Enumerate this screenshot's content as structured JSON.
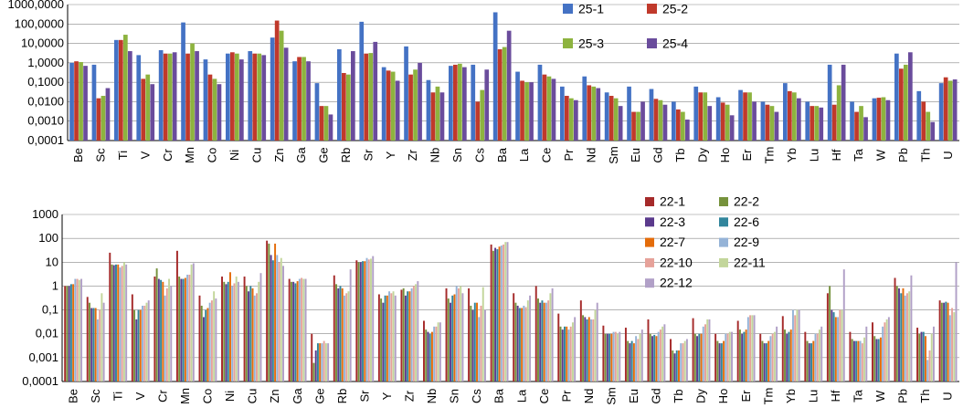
{
  "chart_data": [
    {
      "type": "bar",
      "scale": "log",
      "ylim": [
        0.0001,
        1000
      ],
      "yticks": [
        "0,0001",
        "0,0010",
        "0,0100",
        "0,1000",
        "1,0000",
        "10,0000",
        "100,0000",
        "1000,0000"
      ],
      "grid": true,
      "legend_position": "top-right",
      "categories": [
        "Be",
        "Sc",
        "Ti",
        "V",
        "Cr",
        "Mn",
        "Co",
        "Ni",
        "Cu",
        "Zn",
        "Ga",
        "Ge",
        "Rb",
        "Sr",
        "Y",
        "Zr",
        "Nb",
        "Sn",
        "Cs",
        "Ba",
        "La",
        "Ce",
        "Pr",
        "Nd",
        "Sm",
        "Eu",
        "Gd",
        "Tb",
        "Dy",
        "Ho",
        "Er",
        "Tm",
        "Yb",
        "Lu",
        "Hf",
        "Ta",
        "W",
        "Pb",
        "Th",
        "U"
      ],
      "series": [
        {
          "name": "25-1",
          "color": "#4472c4",
          "values": [
            1,
            0.8,
            15,
            2.5,
            4.5,
            120,
            1.5,
            3,
            4,
            20,
            1.2,
            0.09,
            5,
            130,
            0.6,
            7,
            0.13,
            0.7,
            0.8,
            400,
            0.35,
            0.8,
            0.06,
            0.2,
            0.03,
            0.06,
            0.045,
            0.01,
            0.06,
            0.017,
            0.04,
            0.01,
            0.09,
            0.01,
            0.8,
            0.01,
            0.015,
            3,
            0.035,
            0.09
          ]
        },
        {
          "name": "25-2",
          "color": "#c0392b",
          "values": [
            1.2,
            0.015,
            15,
            0.15,
            3,
            3,
            0.25,
            3.5,
            3,
            150,
            2,
            0.006,
            0.3,
            3,
            0.4,
            0.25,
            0.03,
            0.8,
            0.01,
            5,
            0.12,
            0.25,
            0.02,
            0.07,
            0.02,
            0.003,
            0.014,
            0.004,
            0.03,
            0.009,
            0.03,
            0.007,
            0.035,
            0.006,
            0.007,
            0.003,
            0.016,
            0.5,
            0.01,
            0.18
          ]
        },
        {
          "name": "25-3",
          "color": "#8db33f",
          "values": [
            1.1,
            0.02,
            28,
            0.25,
            3,
            10,
            0.15,
            3,
            3,
            45,
            2,
            0.006,
            0.25,
            3.2,
            0.35,
            0.45,
            0.06,
            0.9,
            0.04,
            6.5,
            0.1,
            0.2,
            0.015,
            0.06,
            0.015,
            0.003,
            0.012,
            0.003,
            0.03,
            0.007,
            0.03,
            0.006,
            0.03,
            0.006,
            0.07,
            0.006,
            0.017,
            0.8,
            0.003,
            0.12
          ]
        },
        {
          "name": "25-4",
          "color": "#6a4c9c",
          "values": [
            0.7,
            0.05,
            4,
            0.08,
            3.5,
            4,
            0.08,
            1.5,
            2.5,
            6,
            1.2,
            0.0022,
            4,
            12,
            0.12,
            1,
            0.03,
            0.6,
            0.45,
            45,
            0.1,
            0.15,
            0.012,
            0.05,
            0.006,
            0.01,
            0.007,
            0.0012,
            0.006,
            0.002,
            0.01,
            0.003,
            0.015,
            0.005,
            0.8,
            0.0016,
            0.012,
            3.5,
            0.0009,
            0.14
          ]
        }
      ]
    },
    {
      "type": "bar",
      "scale": "log",
      "ylim": [
        0.0001,
        1000
      ],
      "yticks": [
        "0,0001",
        "0,001",
        "0,01",
        "0,1",
        "1",
        "10",
        "100",
        "1000"
      ],
      "grid": true,
      "legend_position": "top-right",
      "categories": [
        "Be",
        "Sc",
        "Ti",
        "V",
        "Cr",
        "Mn",
        "Co",
        "Ni",
        "Cu",
        "Zn",
        "Ga",
        "Ge",
        "Rb",
        "Sr",
        "Y",
        "Zr",
        "Nb",
        "Sn",
        "Cs",
        "Ba",
        "La",
        "Ce",
        "Pr",
        "Nd",
        "Sm",
        "Eu",
        "Gd",
        "Tb",
        "Dy",
        "Ho",
        "Er",
        "Tm",
        "Yb",
        "Lu",
        "Hf",
        "Ta",
        "W",
        "Pb",
        "Th",
        "U"
      ],
      "series": [
        {
          "name": "22-1",
          "color": "#a52a2a",
          "values": [
            1,
            0.35,
            25,
            0.45,
            2.5,
            30,
            0.4,
            2.5,
            2.5,
            80,
            2,
            0.01,
            2.8,
            12,
            0.45,
            0.7,
            0.035,
            0.8,
            0.8,
            55,
            0.5,
            1,
            0.07,
            0.25,
            0.022,
            0.018,
            0.04,
            0.006,
            0.045,
            0.01,
            0.035,
            0.01,
            0.055,
            0.012,
            0.5,
            0.012,
            0.03,
            2.2,
            0.018,
            0.25
          ]
        },
        {
          "name": "22-2",
          "color": "#76923c",
          "values": [
            1,
            0.2,
            8,
            0.1,
            5.5,
            2.5,
            0.15,
            1.5,
            1,
            60,
            1.5,
            0.0006,
            1.2,
            10,
            0.3,
            0.8,
            0.015,
            0.3,
            0.15,
            30,
            0.2,
            0.3,
            0.02,
            0.06,
            0.01,
            0.005,
            0.01,
            0.002,
            0.01,
            0.005,
            0.015,
            0.005,
            0.015,
            0.005,
            1,
            0.006,
            0.008,
            1,
            0.01,
            0.2
          ]
        },
        {
          "name": "22-3",
          "color": "#5b3a8c",
          "values": [
            1,
            0.12,
            7.5,
            0.04,
            2,
            2,
            0.05,
            1.2,
            0.6,
            20,
            1.5,
            0.002,
            0.8,
            10,
            0.2,
            0.4,
            0.012,
            0.2,
            0.1,
            40,
            0.15,
            0.2,
            0.015,
            0.05,
            0.01,
            0.004,
            0.008,
            0.0015,
            0.008,
            0.004,
            0.01,
            0.004,
            0.01,
            0.004,
            0.1,
            0.005,
            0.006,
            0.8,
            0.012,
            0.2
          ]
        },
        {
          "name": "22-6",
          "color": "#31859c",
          "values": [
            1.2,
            0.12,
            8,
            0.1,
            1.8,
            2,
            0.1,
            1.5,
            1,
            12,
            1.3,
            0.004,
            1,
            11,
            0.4,
            0.6,
            0.01,
            0.4,
            0.2,
            35,
            0.12,
            0.25,
            0.02,
            0.04,
            0.01,
            0.005,
            0.009,
            0.002,
            0.01,
            0.004,
            0.012,
            0.004,
            0.012,
            0.004,
            0.08,
            0.005,
            0.006,
            0.5,
            0.012,
            0.22
          ]
        },
        {
          "name": "22-7",
          "color": "#e46c0a",
          "values": [
            1.2,
            0.12,
            8,
            0.1,
            1.5,
            2.2,
            0.12,
            3.8,
            0.8,
            60,
            1.6,
            0.004,
            0.8,
            11,
            0.4,
            0.6,
            0.012,
            0.45,
            0.2,
            45,
            0.12,
            0.2,
            0.02,
            0.05,
            0.01,
            0.004,
            0.008,
            0.002,
            0.01,
            0.005,
            0.015,
            0.005,
            0.015,
            0.005,
            0.05,
            0.005,
            0.007,
            0.8,
            0.008,
            0.2
          ]
        },
        {
          "name": "22-9",
          "color": "#95b3d7",
          "values": [
            2,
            0.04,
            6,
            0.15,
            0.4,
            3,
            0.2,
            1,
            0.4,
            20,
            2,
            0.004,
            0.4,
            15,
            0.6,
            0.8,
            0.02,
            1,
            0.05,
            50,
            0.15,
            0.2,
            0.015,
            0.04,
            0.012,
            0.008,
            0.012,
            0.004,
            0.02,
            0.01,
            0.05,
            0.008,
            0.1,
            0.01,
            0.05,
            0.005,
            0.02,
            0.4,
            0.0008,
            0.06
          ]
        },
        {
          "name": "22-10",
          "color": "#e6a29a",
          "values": [
            2,
            0.1,
            7,
            0.15,
            0.8,
            3,
            0.25,
            1.3,
            0.5,
            10,
            2.2,
            0.005,
            0.5,
            13,
            0.5,
            1,
            0.02,
            0.8,
            0.15,
            55,
            0.13,
            0.25,
            0.02,
            0.04,
            0.012,
            0.006,
            0.015,
            0.004,
            0.025,
            0.01,
            0.06,
            0.01,
            0.06,
            0.01,
            0.1,
            0.004,
            0.03,
            0.5,
            0.002,
            0.12
          ]
        },
        {
          "name": "22-11",
          "color": "#c3d69b",
          "values": [
            1.8,
            0.5,
            10,
            0.2,
            2,
            8,
            0.6,
            2.5,
            1.5,
            15,
            2,
            0.004,
            0.6,
            14,
            0.6,
            1.2,
            0.03,
            1,
            0.9,
            70,
            0.25,
            0.5,
            0.03,
            0.1,
            0.01,
            0.01,
            0.02,
            0.005,
            0.04,
            0.012,
            0.06,
            0.012,
            0.1,
            0.015,
            0.1,
            0.007,
            0.04,
            0.6,
            0.01,
            0.08
          ]
        },
        {
          "name": "22-12",
          "color": "#b1a0c7",
          "values": [
            2,
            0.2,
            8,
            0.25,
            1,
            9,
            0.3,
            1.5,
            3.5,
            7,
            2,
            0.004,
            5,
            18,
            0.4,
            1.6,
            0.03,
            0.5,
            0.1,
            70,
            0.4,
            0.8,
            0.05,
            0.2,
            0.012,
            0.015,
            0.025,
            0.006,
            0.04,
            0.012,
            0.06,
            0.02,
            0.1,
            0.02,
            5,
            0.02,
            0.05,
            2.8,
            0.02,
            10
          ]
        }
      ]
    }
  ]
}
